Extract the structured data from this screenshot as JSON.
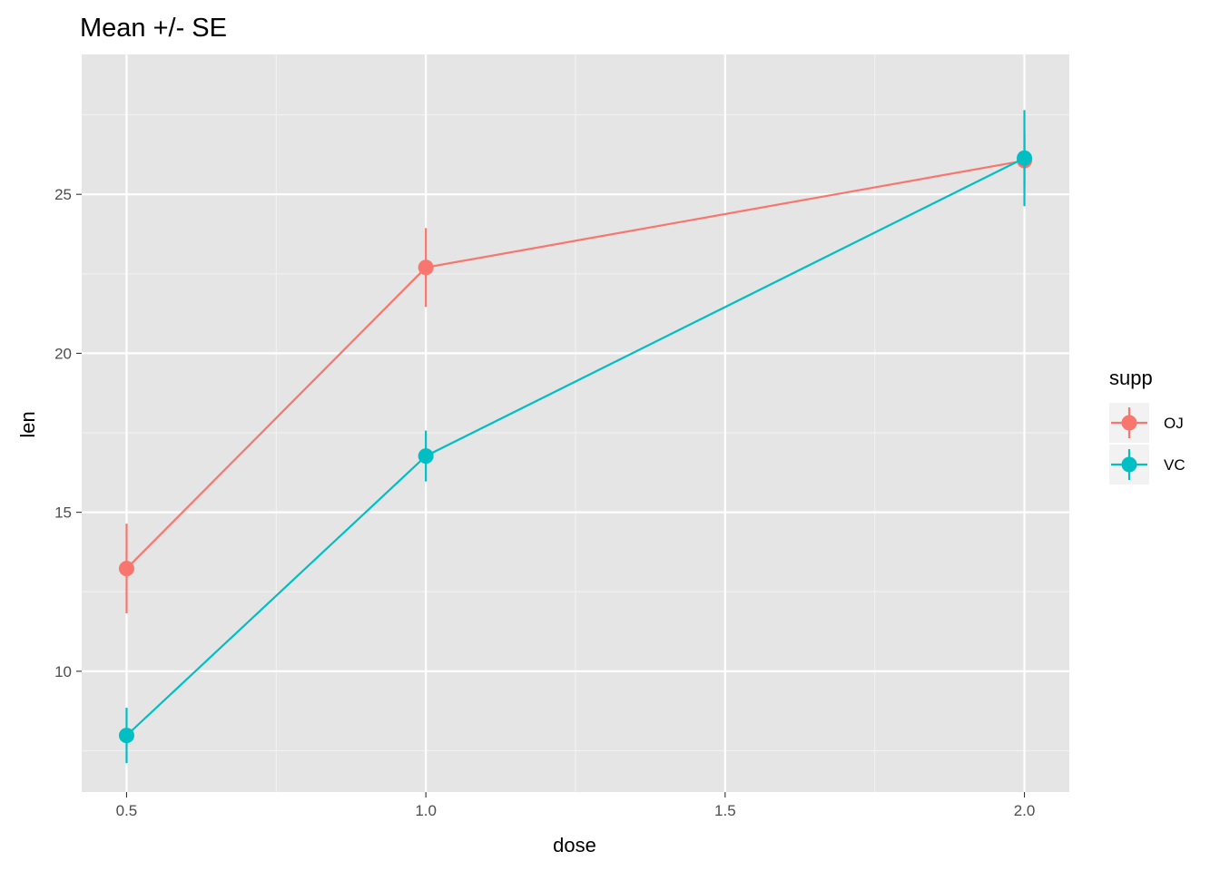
{
  "chart_data": {
    "type": "line",
    "title": "Mean +/- SE",
    "xlabel": "dose",
    "ylabel": "len",
    "x": [
      0.5,
      1.0,
      2.0
    ],
    "xlim": [
      0.425,
      2.075
    ],
    "ylim": [
      6.2,
      29.4
    ],
    "xticks": [
      0.5,
      1.0,
      1.5,
      2.0
    ],
    "xtick_labels": [
      "0.5",
      "1.0",
      "1.5",
      "2.0"
    ],
    "yticks": [
      10,
      15,
      20,
      25
    ],
    "ytick_labels": [
      "10",
      "15",
      "20",
      "25"
    ],
    "grid": true,
    "background": "#e5e5e5",
    "legend": {
      "title": "supp",
      "placement": "right"
    },
    "series": [
      {
        "name": "OJ",
        "color": "#f8766d",
        "values": [
          13.23,
          22.7,
          26.06
        ],
        "se": [
          1.41,
          1.24,
          0.84
        ]
      },
      {
        "name": "VC",
        "color": "#00bfc4",
        "values": [
          7.98,
          16.77,
          26.14
        ],
        "se": [
          0.87,
          0.8,
          1.51
        ]
      }
    ]
  }
}
